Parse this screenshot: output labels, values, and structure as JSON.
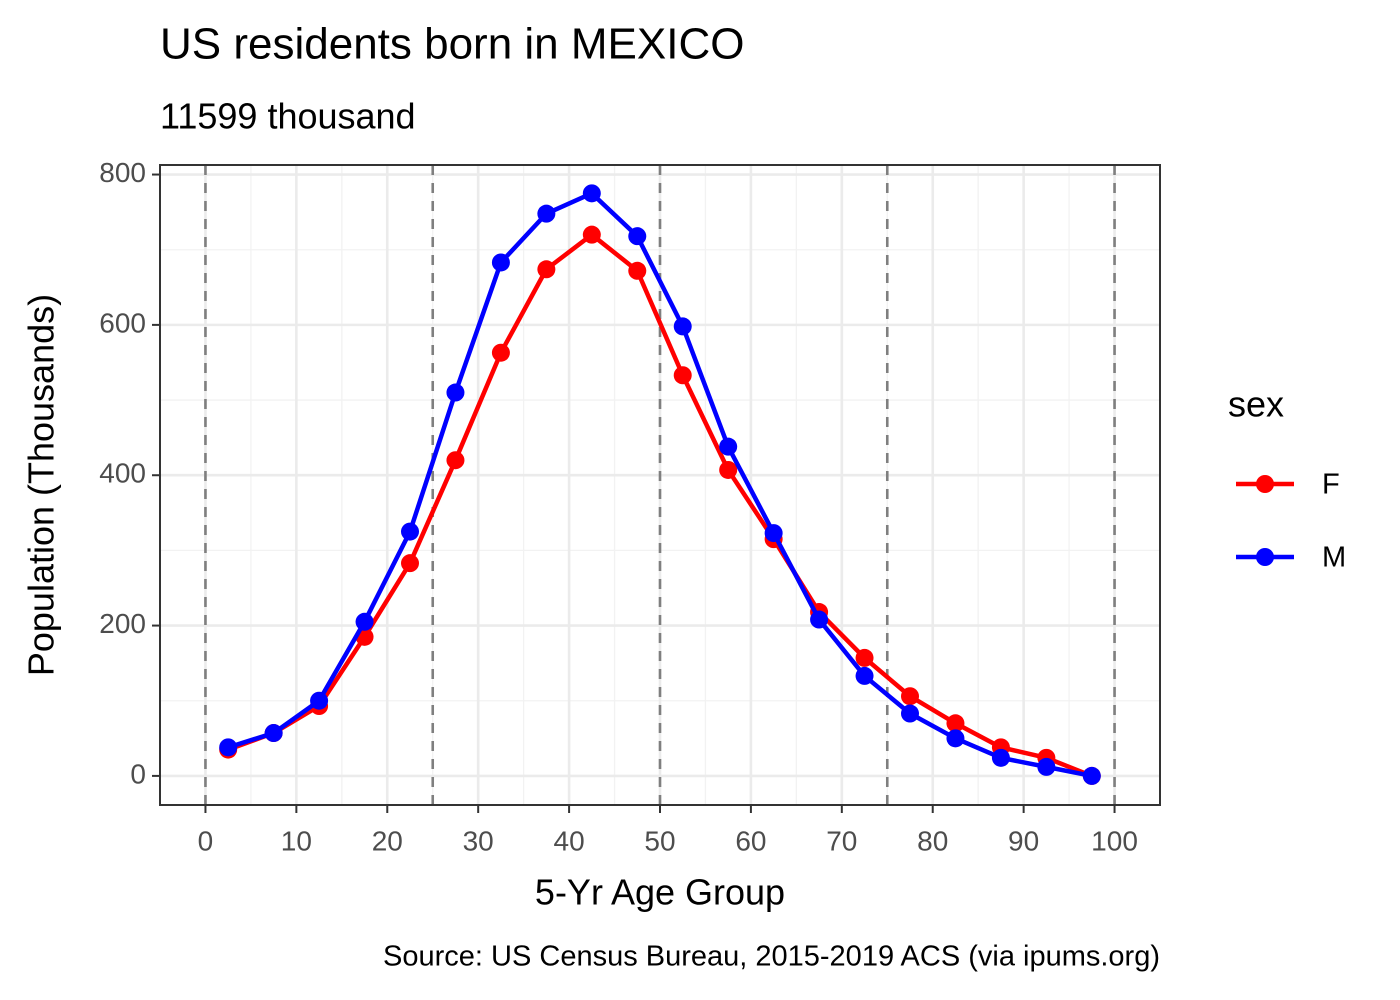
{
  "chart_data": {
    "type": "line",
    "title": "US residents born in MEXICO",
    "subtitle": "11599 thousand",
    "x_label": "5-Yr Age Group",
    "y_label": "Population (Thousands)",
    "caption": "Source: US Census Bureau, 2015-2019 ACS (via ipums.org)",
    "legend_title": "sex",
    "legend_position": "right",
    "grid": true,
    "x": [
      2.5,
      7.5,
      12.5,
      17.5,
      22.5,
      27.5,
      32.5,
      37.5,
      42.5,
      47.5,
      52.5,
      57.5,
      62.5,
      67.5,
      72.5,
      77.5,
      82.5,
      87.5,
      92.5,
      97.5
    ],
    "series": [
      {
        "name": "F",
        "color": "#ff0000",
        "values": [
          35,
          57,
          93,
          185,
          283,
          420,
          563,
          674,
          720,
          672,
          533,
          407,
          315,
          218,
          157,
          106,
          70,
          38,
          24,
          0
        ]
      },
      {
        "name": "M",
        "color": "#0000ff",
        "values": [
          38,
          57,
          100,
          205,
          325,
          510,
          683,
          748,
          775,
          718,
          598,
          438,
          323,
          208,
          133,
          83,
          50,
          24,
          12,
          0
        ]
      }
    ],
    "vlines": [
      0,
      25,
      50,
      75,
      100
    ],
    "xlim": [
      -5,
      105
    ],
    "ylim": [
      -38.7,
      812.7
    ],
    "xticks": [
      0,
      10,
      20,
      30,
      40,
      50,
      60,
      70,
      80,
      90,
      100
    ],
    "yticks": [
      0,
      200,
      400,
      600,
      800
    ]
  }
}
